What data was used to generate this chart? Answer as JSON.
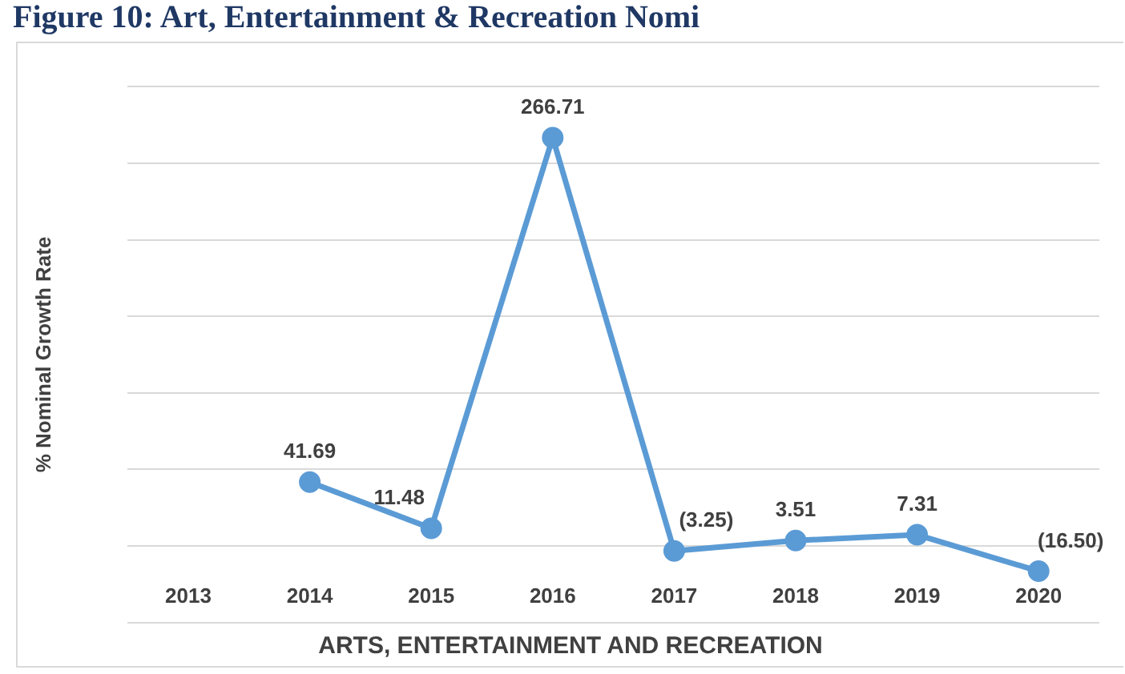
{
  "chart_data": {
    "type": "line",
    "title": "Figure 10: Art, Entertainment & Recreation Nomi",
    "xlabel": "ARTS, ENTERTAINMENT AND RECREATION",
    "ylabel": "% Nominal Growth Rate",
    "categories": [
      "2013",
      "2014",
      "2015",
      "2016",
      "2017",
      "2018",
      "2019",
      "2020"
    ],
    "series": [
      {
        "color": "#5b9bd5",
        "values": [
          null,
          41.69,
          11.48,
          266.71,
          -3.25,
          3.51,
          7.31,
          -16.5
        ],
        "value_labels": [
          null,
          "41.69",
          "11.48",
          "266.71",
          "(3.25)",
          "3.51",
          "7.31",
          "(16.50)"
        ]
      }
    ],
    "ylim": [
      -50,
      300
    ],
    "yticks": [
      {
        "value": -50,
        "label": null
      },
      {
        "value": 0,
        "label": null
      },
      {
        "value": 50,
        "label": null
      },
      {
        "value": 100,
        "label": null
      },
      {
        "value": 150,
        "label": null
      },
      {
        "value": 200,
        "label": null
      },
      {
        "value": 250,
        "label": null
      },
      {
        "value": 300,
        "label": null
      }
    ],
    "grid": "y",
    "marker": "circle",
    "line_style": "solid",
    "legend": false
  }
}
